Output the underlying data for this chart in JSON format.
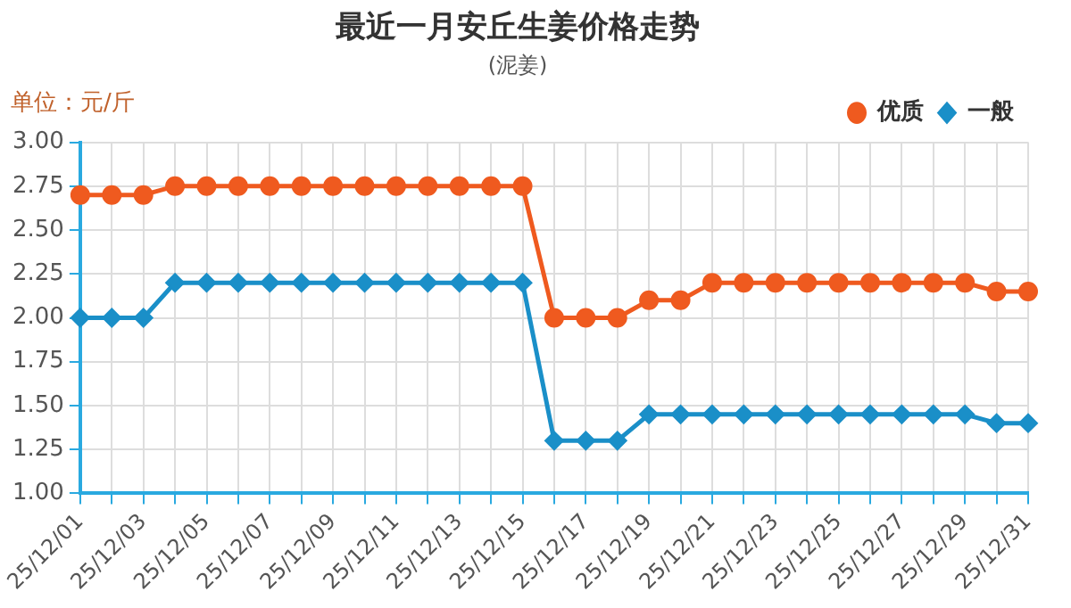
{
  "chart_data": {
    "type": "line",
    "title": "最近一月安丘生姜价格走势",
    "subtitle": "(泥姜)",
    "ylabel": "单位：元/斤",
    "categories": [
      "25/12/01",
      null,
      "25/12/03",
      null,
      "25/12/05",
      null,
      "25/12/07",
      null,
      "25/12/09",
      null,
      "25/12/11",
      null,
      "25/12/13",
      null,
      "25/12/15",
      null,
      "25/12/17",
      null,
      "25/12/19",
      null,
      "25/12/21",
      null,
      "25/12/23",
      null,
      "25/12/25",
      null,
      "25/12/27",
      null,
      "25/12/29",
      null,
      "25/12/31"
    ],
    "series": [
      {
        "name": "优质",
        "color": "#ef5a1f",
        "marker": "circle",
        "values": [
          2.7,
          2.7,
          2.7,
          2.75,
          2.75,
          2.75,
          2.75,
          2.75,
          2.75,
          2.75,
          2.75,
          2.75,
          2.75,
          2.75,
          2.75,
          2.0,
          2.0,
          2.0,
          2.1,
          2.1,
          2.2,
          2.2,
          2.2,
          2.2,
          2.2,
          2.2,
          2.2,
          2.2,
          2.2,
          2.15,
          2.15
        ]
      },
      {
        "name": "一般",
        "color": "#1a8fc8",
        "marker": "diamond",
        "values": [
          2.0,
          2.0,
          2.0,
          2.2,
          2.2,
          2.2,
          2.2,
          2.2,
          2.2,
          2.2,
          2.2,
          2.2,
          2.2,
          2.2,
          2.2,
          1.3,
          1.3,
          1.3,
          1.45,
          1.45,
          1.45,
          1.45,
          1.45,
          1.45,
          1.45,
          1.45,
          1.45,
          1.45,
          1.45,
          1.4,
          1.4
        ]
      }
    ],
    "ylim": [
      1,
      3
    ],
    "yticks": [
      {
        "value": 1,
        "label": "1.00"
      },
      {
        "value": 1.25,
        "label": "1.25"
      },
      {
        "value": 1.5,
        "label": "1.50"
      },
      {
        "value": 1.75,
        "label": "1.75"
      },
      {
        "value": 2,
        "label": "2.00"
      },
      {
        "value": 2.25,
        "label": "2.25"
      },
      {
        "value": 2.5,
        "label": "2.50"
      },
      {
        "value": 2.75,
        "label": "2.75"
      },
      {
        "value": 3,
        "label": "3.00"
      }
    ],
    "grid": true,
    "legend": "top right",
    "line_style": "solid"
  }
}
